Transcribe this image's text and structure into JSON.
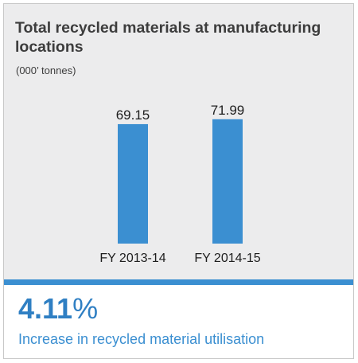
{
  "chart_data": {
    "type": "bar",
    "title": "Total recycled materials at manufacturing locations",
    "subtitle": "(000’ tonnes)",
    "categories": [
      "FY 2013-14",
      "FY 2014-15"
    ],
    "values": [
      69.15,
      71.99
    ],
    "data_labels": [
      "69.15",
      "71.99"
    ],
    "ylim": [
      0,
      80
    ],
    "xlabel": "",
    "ylabel": "",
    "grid": false,
    "legend": "none",
    "bar_color": "#3b8fd1"
  },
  "highlight": {
    "value": "4.11",
    "unit": "%",
    "caption": "Increase in recycled material utilisation"
  },
  "colors": {
    "panel_background": "#ececed",
    "accent": "#3b8fd1",
    "highlight_text": "#2f7fc3",
    "title_text": "#3d3d3d"
  }
}
